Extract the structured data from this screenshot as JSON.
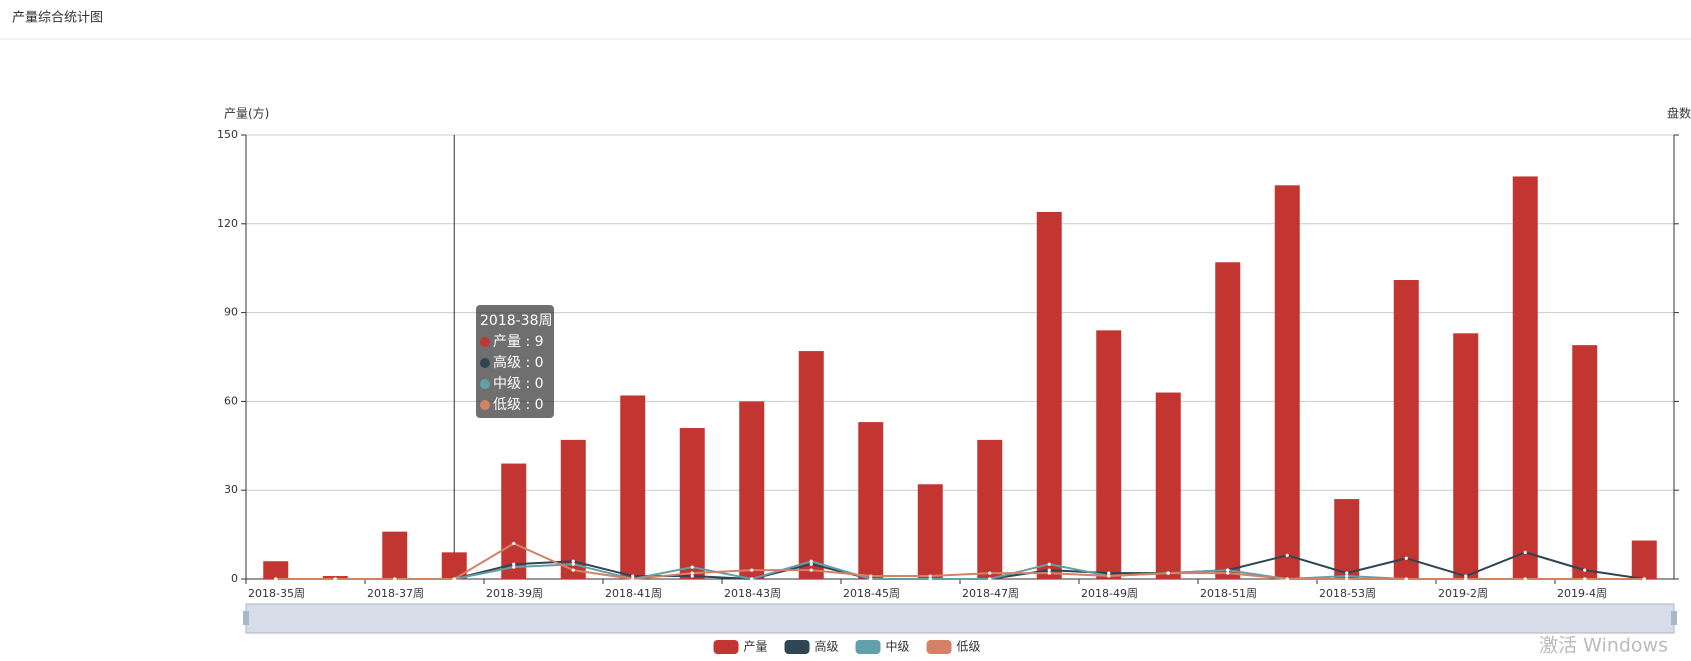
{
  "page_title": "产量综合统计图",
  "watermark": "激活 Windows",
  "chart_data": {
    "type": "bar",
    "y_label": "产量(方)",
    "y2_label": "盘数",
    "categories": [
      "2018-35周",
      null,
      "2018-37周",
      null,
      "2018-39周",
      null,
      "2018-41周",
      null,
      "2018-43周",
      null,
      "2018-45周",
      null,
      "2018-47周",
      null,
      "2018-49周",
      null,
      "2018-51周",
      null,
      "2018-53周",
      null,
      "2019-2周",
      null,
      "2019-4周",
      null
    ],
    "ylim": [
      0,
      150
    ],
    "yticks": [
      0,
      30,
      60,
      90,
      120,
      150
    ],
    "grid": true,
    "series": [
      {
        "name": "产量",
        "type": "bar",
        "color": "#c23531",
        "values": [
          6,
          1,
          16,
          9,
          39,
          47,
          62,
          51,
          60,
          77,
          53,
          32,
          47,
          124,
          84,
          63,
          107,
          133,
          27,
          101,
          83,
          136,
          79,
          13
        ]
      },
      {
        "name": "高级",
        "type": "line",
        "color": "#2f4554",
        "values": [
          0,
          0,
          0,
          0,
          5,
          6,
          1,
          1,
          0,
          5,
          0,
          0,
          0,
          3,
          2,
          2,
          3,
          8,
          2,
          7,
          1,
          9,
          3,
          0
        ]
      },
      {
        "name": "中级",
        "type": "line",
        "color": "#61a0a8",
        "values": [
          0,
          0,
          0,
          0,
          4,
          5,
          0,
          4,
          0,
          6,
          0,
          0,
          0,
          5,
          1,
          2,
          3,
          0,
          1,
          0,
          0,
          0,
          0,
          0
        ]
      },
      {
        "name": "低级",
        "type": "line",
        "color": "#d48265",
        "values": [
          0,
          0,
          0,
          0,
          12,
          3,
          0,
          2,
          3,
          3,
          1,
          1,
          2,
          2,
          1,
          2,
          2,
          0,
          0,
          0,
          0,
          0,
          0,
          0
        ]
      }
    ],
    "tooltip": {
      "title": "2018-38周",
      "index": 3,
      "separator": " : "
    },
    "legend": "bottom"
  }
}
